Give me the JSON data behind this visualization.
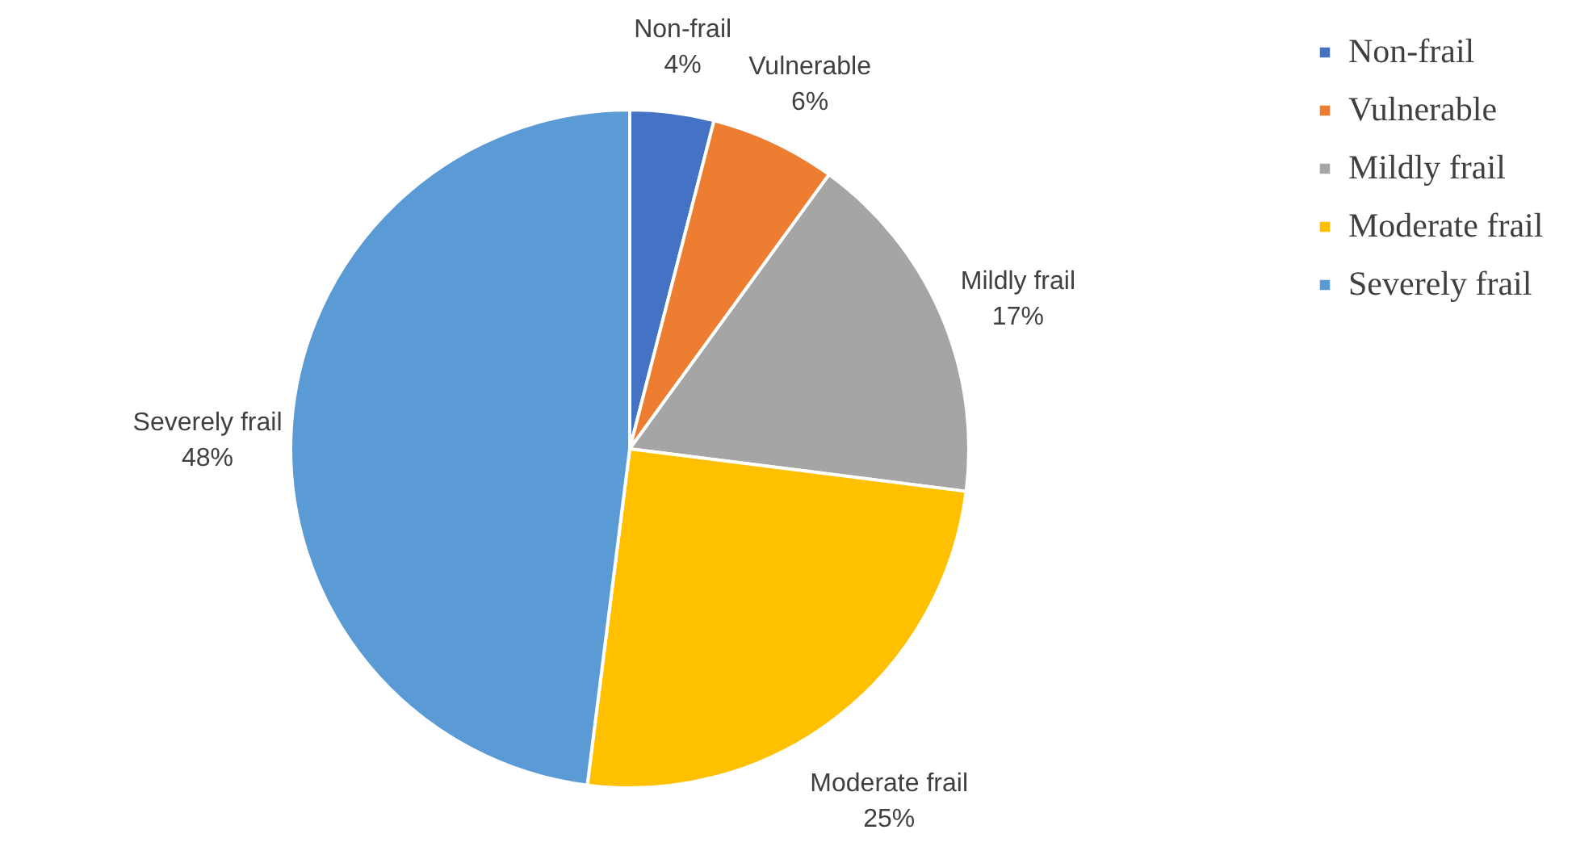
{
  "chart_data": {
    "type": "pie",
    "categories": [
      "Non-frail",
      "Vulnerable",
      "Mildly frail",
      "Moderate frail",
      "Severely frail"
    ],
    "values": [
      4,
      6,
      17,
      25,
      48
    ],
    "value_labels": [
      "4%",
      "6%",
      "17%",
      "25%",
      "48%"
    ],
    "colors": [
      "#4472c4",
      "#ed7d31",
      "#a5a5a5",
      "#ffc000",
      "#5b9bd5"
    ],
    "legend": "right"
  }
}
